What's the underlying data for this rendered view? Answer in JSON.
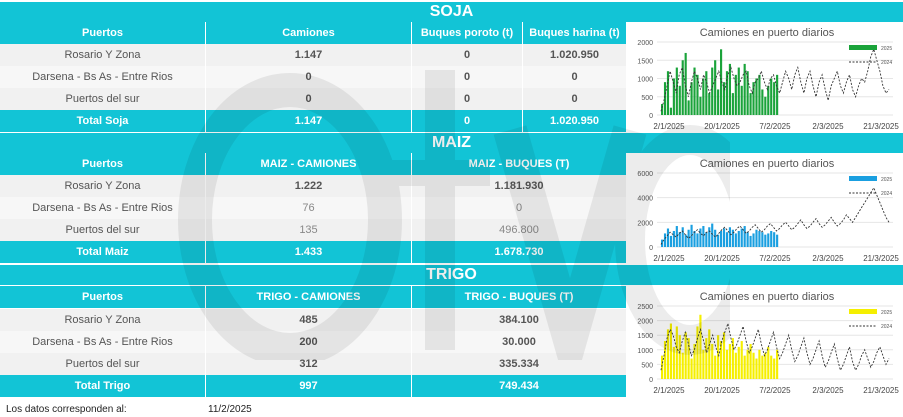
{
  "soja": {
    "title": "SOJA",
    "headers": [
      "Puertos",
      "Camiones",
      "Buques poroto (t)",
      "Buques harina (t)"
    ],
    "rows": [
      [
        "Rosario Y Zona",
        "1.147",
        "0",
        "1.020.950"
      ],
      [
        "Darsena - Bs As - Entre Rios",
        "0",
        "0",
        "0"
      ],
      [
        "Puertos del sur",
        "0",
        "0",
        "0"
      ]
    ],
    "total": [
      "Total Soja",
      "1.147",
      "0",
      "1.020.950"
    ]
  },
  "maiz": {
    "title": "MAIZ",
    "headers": [
      "Puertos",
      "MAIZ - CAMIONES",
      "MAIZ - BUQUES (T)"
    ],
    "rows": [
      [
        "Rosario Y Zona",
        "1.222",
        "1.181.930"
      ],
      [
        "Darsena - Bs As - Entre Rios",
        "76",
        "0"
      ],
      [
        "Puertos del sur",
        "135",
        "496.800"
      ]
    ],
    "total": [
      "Total Maiz",
      "1.433",
      "1.678.730"
    ]
  },
  "trigo": {
    "title": "TRIGO",
    "headers": [
      "Puertos",
      "TRIGO - CAMIONES",
      "TRIGO - BUQUES (T)"
    ],
    "rows": [
      [
        "Rosario Y Zona",
        "485",
        "384.100"
      ],
      [
        "Darsena - Bs As - Entre Rios",
        "200",
        "30.000"
      ],
      [
        "Puertos del sur",
        "312",
        "335.334"
      ]
    ],
    "total": [
      "Total Trigo",
      "997",
      "749.434"
    ]
  },
  "footer": {
    "label": "Los datos corresponden al:",
    "date": "11/2/2025"
  },
  "chart_data": [
    {
      "type": "bar",
      "title": "Camiones en puerto diarios",
      "color": "#1aa33a",
      "ylim": [
        0,
        2000
      ],
      "yticks": [
        "2000",
        "1500",
        "1000",
        "500",
        "0"
      ],
      "xticks": [
        "2/1/2025",
        "20/1/2025",
        "7/2/2025",
        "2/3/2025",
        "21/3/2025"
      ],
      "series": [
        {
          "name": "2025",
          "values": [
            300,
            900,
            1200,
            200,
            1000,
            1300,
            800,
            1500,
            1700,
            400,
            900,
            1300,
            1100,
            500,
            1000,
            1200,
            600,
            1300,
            1500,
            700,
            1800,
            900,
            1200,
            1400,
            600,
            1100,
            1300,
            800,
            1400,
            1200,
            600,
            900,
            1000,
            1100,
            700,
            500,
            800,
            1000,
            900,
            1100
          ]
        },
        {
          "name": "2024",
          "values": [
            100,
            400,
            800,
            1200,
            900,
            600,
            1100,
            1300,
            800,
            500,
            900,
            1200,
            1000,
            700,
            1100,
            900,
            600,
            800,
            1000,
            1200,
            900,
            700,
            1100,
            1300,
            1000,
            800,
            900,
            1100,
            1200,
            800,
            600,
            900,
            1000,
            1200,
            900,
            700,
            1000,
            1100,
            800,
            600,
            900,
            1200,
            1000,
            700,
            1100,
            1300,
            900,
            600,
            1000,
            1200,
            800,
            500,
            900,
            1100,
            700,
            400,
            800,
            1000,
            1200,
            800,
            600,
            900,
            1100,
            700,
            500,
            800,
            1000,
            900,
            1200,
            1600,
            1800,
            1500,
            1200,
            800,
            600,
            700
          ]
        }
      ]
    },
    {
      "type": "bar",
      "title": "Camiones en puerto diarios",
      "color": "#1a9fe0",
      "ylim": [
        0,
        6000
      ],
      "yticks": [
        "6000",
        "4000",
        "2000",
        "0"
      ],
      "xticks": [
        "2/1/2025",
        "20/1/2025",
        "7/2/2025",
        "2/3/2025",
        "21/3/2025"
      ],
      "series": [
        {
          "name": "2025",
          "values": [
            600,
            1100,
            1500,
            900,
            1300,
            1700,
            1200,
            1600,
            1000,
            1400,
            1800,
            1300,
            1100,
            1500,
            1700,
            1200,
            1600,
            1900,
            1400,
            1000,
            1300,
            1500,
            1200,
            1600,
            1400,
            1100,
            1300,
            1500,
            1700,
            1200,
            900,
            1100,
            1400,
            1300,
            1200,
            1000,
            1100,
            1300,
            1200,
            1000
          ]
        },
        {
          "name": "2024",
          "values": [
            200,
            600,
            900,
            1200,
            1000,
            800,
            1100,
            1300,
            1000,
            700,
            900,
            1200,
            1400,
            1100,
            900,
            1200,
            1300,
            1000,
            800,
            1100,
            1400,
            1600,
            1300,
            1000,
            1200,
            1500,
            1700,
            1400,
            1100,
            1300,
            1600,
            1800,
            1500,
            1200,
            1400,
            1700,
            1900,
            1600,
            1300,
            1500,
            1800,
            2000,
            1700,
            1400,
            1600,
            1900,
            2200,
            1800,
            1500,
            1700,
            2000,
            2300,
            1900,
            1600,
            1800,
            2100,
            2400,
            2000,
            1700,
            1900,
            2200,
            2600,
            2300,
            2000,
            2400,
            2800,
            3200,
            3600,
            4000,
            4400,
            4800,
            4200,
            3600,
            3000,
            2400,
            2000
          ]
        }
      ]
    },
    {
      "type": "bar",
      "title": "Camiones en puerto diarios",
      "color": "#f5ef00",
      "ylim": [
        0,
        2500
      ],
      "yticks": [
        "2500",
        "2000",
        "1500",
        "1000",
        "500",
        "0"
      ],
      "xticks": [
        "2/1/2025",
        "20/1/2025",
        "7/2/2025",
        "2/3/2025",
        "21/3/2025"
      ],
      "series": [
        {
          "name": "2025",
          "values": [
            800,
            1300,
            1700,
            1900,
            1100,
            1800,
            1500,
            900,
            1600,
            1400,
            700,
            1200,
            1800,
            2200,
            1000,
            1400,
            1700,
            1200,
            800,
            1500,
            1300,
            1600,
            1000,
            1200,
            1400,
            900,
            1100,
            1300,
            800,
            1000,
            1200,
            900,
            700,
            1000,
            800,
            900,
            1100,
            800,
            700,
            1000
          ]
        },
        {
          "name": "2024",
          "values": [
            300,
            800,
            1400,
            1700,
            1500,
            1100,
            900,
            1300,
            1600,
            1200,
            800,
            1000,
            1400,
            1700,
            1300,
            900,
            1200,
            1500,
            1100,
            800,
            1300,
            1600,
            1900,
            1400,
            1000,
            1200,
            1500,
            1800,
            1300,
            900,
            1100,
            1400,
            1700,
            1200,
            800,
            1000,
            1300,
            1600,
            1100,
            700,
            900,
            1200,
            1500,
            1000,
            600,
            800,
            1100,
            1400,
            900,
            500,
            700,
            1000,
            1300,
            800,
            400,
            600,
            900,
            1200,
            700,
            300,
            500,
            800,
            1100,
            600,
            300,
            500,
            800,
            1000,
            700,
            400,
            600,
            900,
            1100,
            800,
            500,
            700
          ]
        }
      ]
    }
  ]
}
